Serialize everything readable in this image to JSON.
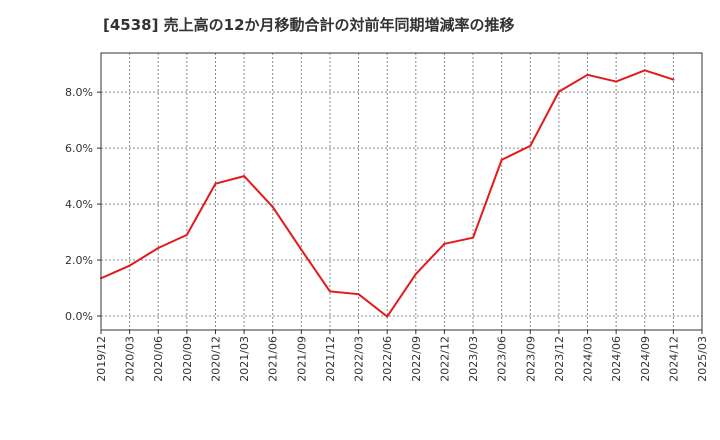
{
  "chart_data": {
    "type": "line",
    "title": "[4538]  売上高の12か月移動合計の対前年同期増減率の推移",
    "xlabel": "",
    "ylabel": "",
    "x_tick_labels": [
      "2019/12",
      "2020/03",
      "2020/06",
      "2020/09",
      "2020/12",
      "2021/03",
      "2021/06",
      "2021/09",
      "2021/12",
      "2022/03",
      "2022/06",
      "2022/09",
      "2022/12",
      "2023/03",
      "2023/06",
      "2023/09",
      "2023/12",
      "2024/03",
      "2024/06",
      "2024/09",
      "2024/12",
      "2025/03"
    ],
    "y_ticks": [
      0,
      2,
      4,
      6,
      8
    ],
    "y_tick_labels": [
      "0.0%",
      "2.0%",
      "4.0%",
      "6.0%",
      "8.0%"
    ],
    "ylim": [
      -0.5,
      9.4
    ],
    "grid": true,
    "series": [
      {
        "name": "対前年同期増減率",
        "color": "#e31a1c",
        "x": [
          "2019/12",
          "2020/03",
          "2020/06",
          "2020/09",
          "2020/12",
          "2021/03",
          "2021/06",
          "2021/09",
          "2021/12",
          "2022/03",
          "2022/06",
          "2022/09",
          "2022/12",
          "2023/03",
          "2023/06",
          "2023/09",
          "2023/12",
          "2024/03",
          "2024/06",
          "2024/09",
          "2024/12"
        ],
        "values": [
          1.35,
          1.8,
          2.43,
          2.9,
          4.73,
          5.0,
          3.9,
          2.37,
          0.88,
          0.78,
          -0.02,
          1.5,
          2.58,
          2.8,
          5.58,
          6.08,
          8.02,
          8.62,
          8.38,
          8.78,
          8.45
        ]
      }
    ]
  }
}
